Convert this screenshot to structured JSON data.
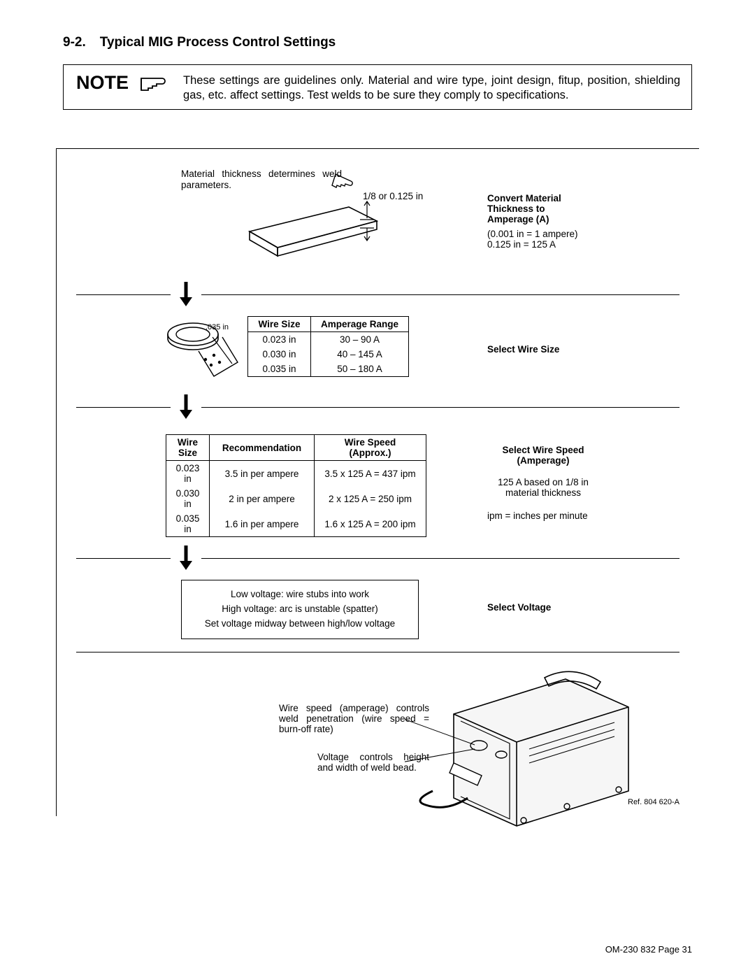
{
  "section": {
    "number": "9-2.",
    "title": "Typical MIG Process Control Settings"
  },
  "note": {
    "label": "NOTE",
    "text": "These settings are guidelines only. Material and wire type, joint design, fitup, position, shielding gas, etc. affect settings. Test welds to be sure they comply to specifications."
  },
  "step1": {
    "caption": "Material thickness determines weld parameters.",
    "thickness_callout": "1/8 or 0.125 in",
    "right_title": "Convert Material Thickness to Amperage (A)",
    "right_line1": "(0.001 in  =  1 ampere)",
    "right_line2": "0.125 in  =  125 A"
  },
  "step2": {
    "spool_label": ".035 in",
    "col1": "Wire Size",
    "col2": "Amperage Range",
    "rows": [
      {
        "size": "0.023 in",
        "amp": "30 – 90 A"
      },
      {
        "size": "0.030 in",
        "amp": "40 – 145 A"
      },
      {
        "size": "0.035 in",
        "amp": "50 – 180 A"
      }
    ],
    "right_title": "Select Wire Size"
  },
  "step3": {
    "col1": "Wire Size",
    "col2": "Recommendation",
    "col3": "Wire Speed (Approx.)",
    "rows": [
      {
        "size": "0.023 in",
        "rec": "3.5 in per ampere",
        "speed": "3.5 x 125 A = 437 ipm"
      },
      {
        "size": "0.030 in",
        "rec": "2 in per ampere",
        "speed": "2 x 125 A = 250 ipm"
      },
      {
        "size": "0.035 in",
        "rec": "1.6 in per ampere",
        "speed": "1.6 x 125 A = 200 ipm"
      }
    ],
    "right_title": "Select Wire Speed (Amperage)",
    "right_line1": "125 A based on 1/8 in material thickness",
    "right_line2": "ipm = inches per minute"
  },
  "step4": {
    "line1": "Low voltage: wire stubs into work",
    "line2": "High voltage: arc is unstable (spatter)",
    "line3": "Set voltage midway between high/low voltage",
    "right_title": "Select Voltage"
  },
  "step5": {
    "caption1": "Wire speed (amperage) controls weld penetration (wire speed = burn-off rate)",
    "caption2": "Voltage controls height and width of weld bead."
  },
  "ref": "Ref. 804 620-A",
  "footer": "OM-230 832 Page 31",
  "colors": {
    "text": "#000000",
    "rule": "#000000",
    "bg": "#ffffff"
  }
}
